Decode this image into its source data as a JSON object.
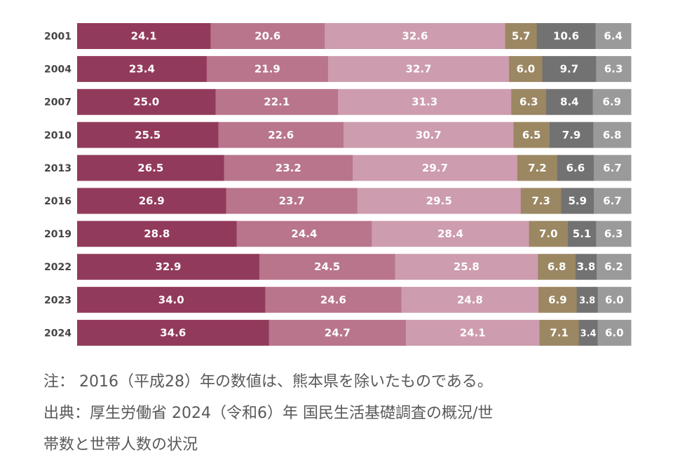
{
  "chart_data": {
    "type": "bar",
    "orientation": "horizontal",
    "stacked": true,
    "categories": [
      "2001",
      "2004",
      "2007",
      "2010",
      "2013",
      "2016",
      "2019",
      "2022",
      "2023",
      "2024"
    ],
    "series": [
      {
        "values": [
          24.1,
          23.4,
          25.0,
          25.5,
          26.5,
          26.9,
          28.8,
          32.9,
          34.0,
          34.6
        ],
        "color": "#923a5b"
      },
      {
        "values": [
          20.6,
          21.9,
          22.1,
          22.6,
          23.2,
          23.7,
          24.4,
          24.5,
          24.6,
          24.7
        ],
        "color": "#b8758c"
      },
      {
        "values": [
          32.6,
          32.7,
          31.3,
          30.7,
          29.7,
          29.5,
          28.4,
          25.8,
          24.8,
          24.1
        ],
        "color": "#cd9cae"
      },
      {
        "values": [
          5.7,
          6.0,
          6.3,
          6.5,
          7.2,
          7.3,
          7.0,
          6.8,
          6.9,
          7.1
        ],
        "color": "#9b8762"
      },
      {
        "values": [
          10.6,
          9.7,
          8.4,
          7.9,
          6.6,
          5.9,
          5.1,
          3.8,
          3.8,
          3.4
        ],
        "color": "#727272"
      },
      {
        "values": [
          6.4,
          6.3,
          6.9,
          6.8,
          6.7,
          6.7,
          6.3,
          6.2,
          6.0,
          6.0
        ],
        "color": "#9a9a9a"
      }
    ],
    "xlim": [
      0,
      100
    ],
    "grid": false,
    "legend": "none",
    "data_labels": true
  },
  "notes": [
    "注： 2016（平成28）年の数値は、熊本県を除いたものである。",
    "出典：厚生労働省 2024（令和6）年 国民生活基礎調査の概況/世",
    "帯数と世帯人数の状況"
  ]
}
